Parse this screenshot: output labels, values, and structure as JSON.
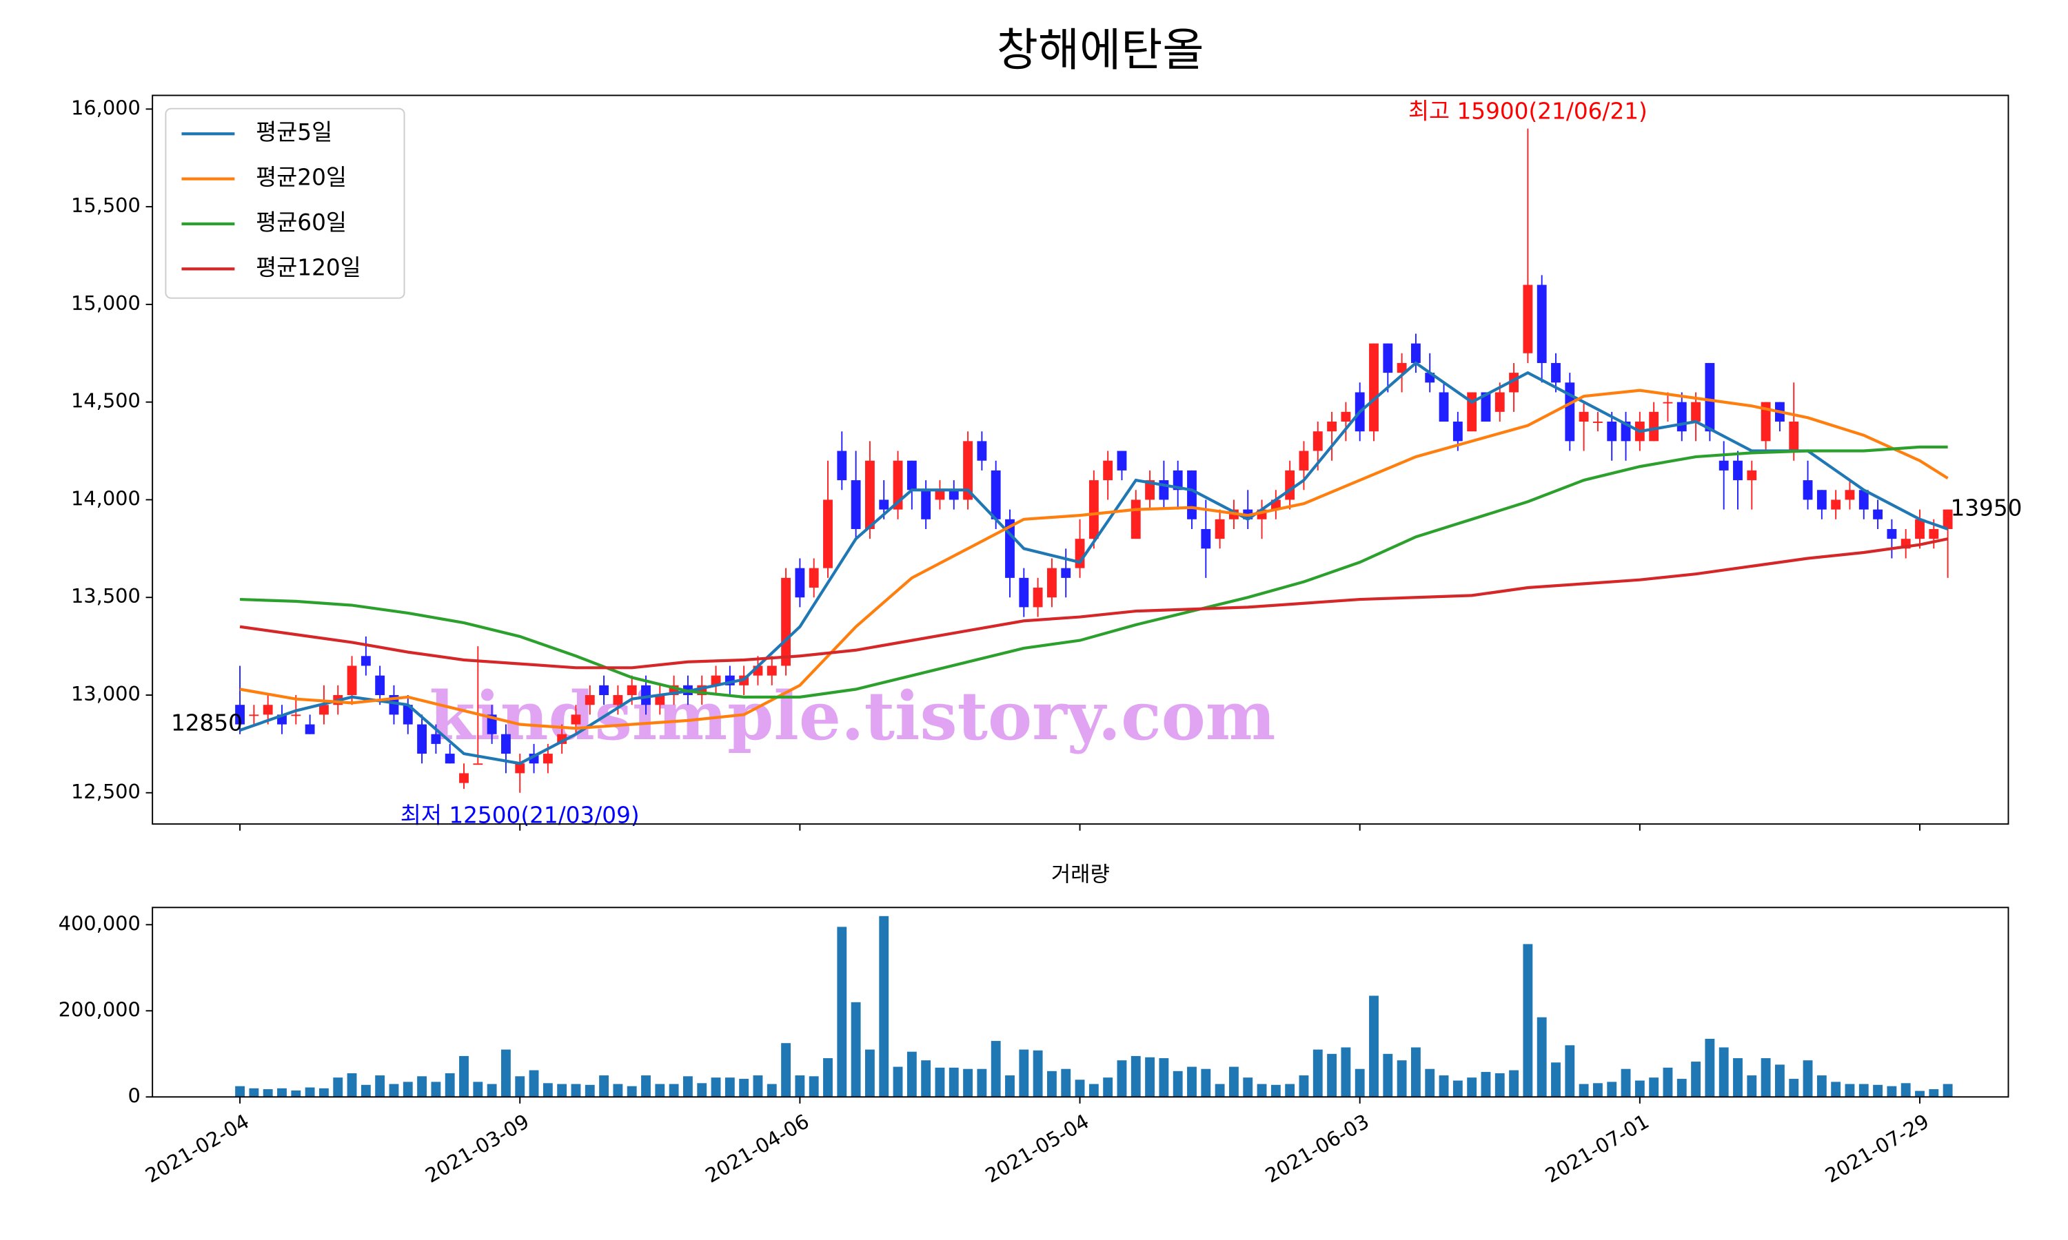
{
  "chart_data": [
    {
      "type": "candlestick",
      "title": "창해에탄올",
      "open": [
        12950,
        12900,
        12900,
        12900,
        12900,
        12850,
        12900,
        12950,
        13000,
        13200,
        13100,
        13000,
        12950,
        12850,
        12800,
        12700,
        12550,
        12650,
        12900,
        12800,
        12600,
        12700,
        12650,
        12750,
        12850,
        12950,
        13050,
        12950,
        13000,
        13050,
        12950,
        13000,
        13050,
        13000,
        13050,
        13100,
        13050,
        13100,
        13100,
        13150,
        13650,
        13550,
        13650,
        14250,
        14100,
        13850,
        14000,
        13950,
        14200,
        14050,
        14000,
        14050,
        14000,
        14300,
        14150,
        13900,
        13600,
        13450,
        13500,
        13650,
        13650,
        13800,
        14100,
        14250,
        13800,
        14000,
        14100,
        14150,
        14150,
        13850,
        13800,
        13900,
        13950,
        13900,
        13950,
        14000,
        14150,
        14250,
        14350,
        14400,
        14550,
        14350,
        14800,
        14650,
        14800,
        14650,
        14550,
        14400,
        14350,
        14550,
        14450,
        14550,
        14750,
        15100,
        14700,
        14600,
        14400,
        14400,
        14400,
        14400,
        14300,
        14300,
        14500,
        14500,
        14400,
        14700,
        14200,
        14200,
        14100,
        14300,
        14500,
        14250,
        14100,
        14050,
        13950,
        14000,
        14050,
        13950,
        13850,
        13750,
        13800,
        13800,
        13850
      ],
      "high": [
        13150,
        12950,
        13000,
        12950,
        13000,
        12900,
        13050,
        13050,
        13200,
        13300,
        13150,
        13050,
        13000,
        12900,
        12850,
        12750,
        12650,
        13250,
        12950,
        12850,
        12700,
        12750,
        12750,
        12850,
        12950,
        13050,
        13100,
        13050,
        13100,
        13100,
        13050,
        13100,
        13100,
        13100,
        13150,
        13150,
        13150,
        13200,
        13200,
        13650,
        13700,
        13700,
        14200,
        14350,
        14250,
        14300,
        14100,
        14250,
        14200,
        14100,
        14100,
        14100,
        14350,
        14350,
        14200,
        13950,
        13650,
        13600,
        13700,
        13750,
        13900,
        14150,
        14250,
        14250,
        14050,
        14150,
        14200,
        14200,
        14150,
        14000,
        13950,
        14000,
        14050,
        14000,
        14050,
        14200,
        14300,
        14400,
        14450,
        14500,
        14600,
        14800,
        14800,
        14750,
        14850,
        14750,
        14600,
        14450,
        14550,
        14550,
        14600,
        14700,
        15900,
        15150,
        14750,
        14650,
        14500,
        14450,
        14450,
        14450,
        14450,
        14500,
        14550,
        14550,
        14550,
        14700,
        14300,
        14250,
        14200,
        14500,
        14500,
        14600,
        14200,
        14050,
        14050,
        14100,
        14050,
        14000,
        13900,
        13850,
        13950,
        13900,
        13950
      ],
      "low": [
        12800,
        12850,
        12850,
        12800,
        12850,
        12800,
        12850,
        12900,
        12950,
        13100,
        12950,
        12850,
        12800,
        12650,
        12700,
        12650,
        12520,
        12650,
        12750,
        12600,
        12500,
        12600,
        12600,
        12700,
        12800,
        12900,
        12950,
        12900,
        12950,
        12900,
        12900,
        12950,
        12950,
        12950,
        13000,
        13000,
        13000,
        13050,
        13050,
        13100,
        13450,
        13500,
        13600,
        14050,
        13800,
        13800,
        13900,
        13900,
        13950,
        13850,
        13950,
        13950,
        13950,
        14150,
        13850,
        13500,
        13400,
        13400,
        13450,
        13500,
        13600,
        13750,
        14000,
        14100,
        13800,
        13950,
        13950,
        13950,
        13850,
        13600,
        13750,
        13850,
        13850,
        13800,
        13900,
        13950,
        14050,
        14150,
        14200,
        14300,
        14300,
        14300,
        14550,
        14550,
        14650,
        14550,
        14400,
        14250,
        14350,
        14400,
        14400,
        14450,
        14700,
        14600,
        14550,
        14250,
        14250,
        14350,
        14200,
        14200,
        14250,
        14300,
        14400,
        14300,
        14300,
        14300,
        13950,
        13950,
        13950,
        14250,
        14350,
        14200,
        13950,
        13900,
        13900,
        13950,
        13900,
        13850,
        13700,
        13700,
        13750,
        13750,
        13600
      ],
      "close": [
        12850,
        12900,
        12950,
        12850,
        12900,
        12800,
        12950,
        13000,
        13150,
        13150,
        13000,
        12900,
        12850,
        12700,
        12750,
        12650,
        12600,
        12650,
        12800,
        12700,
        12650,
        12650,
        12700,
        12800,
        12900,
        13000,
        13000,
        13000,
        13050,
        12950,
        13000,
        13050,
        13000,
        13050,
        13100,
        13050,
        13100,
        13150,
        13150,
        13600,
        13500,
        13650,
        14000,
        14100,
        13850,
        14200,
        13950,
        14200,
        14050,
        13900,
        14050,
        14000,
        14300,
        14200,
        13900,
        13600,
        13450,
        13550,
        13650,
        13600,
        13800,
        14100,
        14200,
        14150,
        14000,
        14100,
        14000,
        14050,
        13900,
        13750,
        13900,
        13950,
        13900,
        13950,
        14000,
        14150,
        14250,
        14350,
        14400,
        14450,
        14350,
        14800,
        14650,
        14700,
        14700,
        14600,
        14400,
        14300,
        14550,
        14400,
        14550,
        14650,
        15100,
        14700,
        14600,
        14300,
        14450,
        14400,
        14300,
        14300,
        14400,
        14450,
        14500,
        14350,
        14500,
        14350,
        14150,
        14100,
        14150,
        14500,
        14400,
        14400,
        14000,
        13950,
        14000,
        14050,
        13950,
        13900,
        13800,
        13800,
        13900,
        13850,
        13950
      ],
      "up_color": "#ff2020",
      "down_color": "#1f1fff",
      "series": [
        {
          "name": "평균5일",
          "color": "#1f77b4",
          "x": [
            0,
            4,
            8,
            12,
            16,
            20,
            24,
            28,
            32,
            36,
            40,
            44,
            48,
            52,
            56,
            60,
            64,
            68,
            72,
            76,
            80,
            84,
            88,
            92,
            96,
            100,
            104,
            108,
            112,
            116,
            120,
            122
          ],
          "values": [
            12820,
            12920,
            12990,
            12950,
            12700,
            12650,
            12800,
            12980,
            13020,
            13080,
            13350,
            13800,
            14050,
            14050,
            13750,
            13680,
            14100,
            14050,
            13900,
            14100,
            14450,
            14700,
            14500,
            14650,
            14500,
            14350,
            14400,
            14250,
            14250,
            14050,
            13900,
            13850
          ]
        },
        {
          "name": "평균20일",
          "color": "#ff7f0e",
          "x": [
            0,
            4,
            8,
            12,
            16,
            20,
            24,
            28,
            32,
            36,
            40,
            44,
            48,
            52,
            56,
            60,
            64,
            68,
            72,
            76,
            80,
            84,
            88,
            92,
            96,
            100,
            104,
            108,
            112,
            116,
            120,
            122
          ],
          "values": [
            13030,
            12980,
            12960,
            12990,
            12920,
            12850,
            12830,
            12850,
            12870,
            12900,
            13050,
            13350,
            13600,
            13750,
            13900,
            13920,
            13950,
            13960,
            13920,
            13980,
            14100,
            14220,
            14300,
            14380,
            14530,
            14560,
            14520,
            14480,
            14420,
            14330,
            14200,
            14110
          ]
        },
        {
          "name": "평균60일",
          "color": "#2ca02c",
          "x": [
            0,
            4,
            8,
            12,
            16,
            20,
            24,
            28,
            32,
            36,
            40,
            44,
            48,
            52,
            56,
            60,
            64,
            68,
            72,
            76,
            80,
            84,
            88,
            92,
            96,
            100,
            104,
            108,
            112,
            116,
            120,
            122
          ],
          "values": [
            13490,
            13480,
            13460,
            13420,
            13370,
            13300,
            13200,
            13090,
            13020,
            12990,
            12990,
            13030,
            13100,
            13170,
            13240,
            13280,
            13360,
            13430,
            13500,
            13580,
            13680,
            13810,
            13900,
            13990,
            14100,
            14170,
            14220,
            14240,
            14250,
            14250,
            14270,
            14270
          ]
        },
        {
          "name": "평균120일",
          "color": "#d62728",
          "x": [
            0,
            4,
            8,
            12,
            16,
            20,
            24,
            28,
            32,
            36,
            40,
            44,
            48,
            52,
            56,
            60,
            64,
            68,
            72,
            76,
            80,
            84,
            88,
            92,
            96,
            100,
            104,
            108,
            112,
            116,
            120,
            122
          ],
          "values": [
            13350,
            13310,
            13270,
            13220,
            13180,
            13160,
            13140,
            13140,
            13170,
            13180,
            13200,
            13230,
            13280,
            13330,
            13380,
            13400,
            13430,
            13440,
            13450,
            13470,
            13490,
            13500,
            13510,
            13550,
            13570,
            13590,
            13620,
            13660,
            13700,
            13730,
            13770,
            13800
          ]
        }
      ],
      "legend": "upper left",
      "ylim": [
        12340,
        16070
      ],
      "yticks": [
        {
          "value": 12500,
          "label": "12,500"
        },
        {
          "value": 13000,
          "label": "13,000"
        },
        {
          "value": 13500,
          "label": "13,500"
        },
        {
          "value": 14000,
          "label": "14,000"
        },
        {
          "value": 14500,
          "label": "14,500"
        },
        {
          "value": 15000,
          "label": "15,000"
        },
        {
          "value": 15500,
          "label": "15,500"
        },
        {
          "value": 16000,
          "label": "16,000"
        }
      ],
      "high_label": "최고 15900(21/06/21)",
      "high_color": "#ff0000",
      "low_label": "최저 12500(21/03/09)",
      "low_color": "#0000ff",
      "first_label": "12850",
      "last_label": "13950",
      "watermark": "kindsimple.tistory.com"
    },
    {
      "type": "bar",
      "title": "거래량",
      "color": "#1f77b4",
      "categories": [
        "2021-02-04",
        null,
        null,
        null,
        null,
        null,
        null,
        null,
        null,
        null,
        null,
        null,
        null,
        null,
        null,
        null,
        null,
        null,
        null,
        null,
        "2021-03-09",
        null,
        null,
        null,
        null,
        null,
        null,
        null,
        null,
        null,
        null,
        null,
        null,
        null,
        null,
        null,
        null,
        null,
        null,
        null,
        "2021-04-06",
        null,
        null,
        null,
        null,
        null,
        null,
        null,
        null,
        null,
        null,
        null,
        null,
        null,
        null,
        null,
        null,
        null,
        null,
        null,
        "2021-05-04",
        null,
        null,
        null,
        null,
        null,
        null,
        null,
        null,
        null,
        null,
        null,
        null,
        null,
        null,
        null,
        null,
        null,
        null,
        null,
        "2021-06-03",
        null,
        null,
        null,
        null,
        null,
        null,
        null,
        null,
        null,
        null,
        null,
        null,
        null,
        null,
        null,
        null,
        null,
        null,
        null,
        "2021-07-01",
        null,
        null,
        null,
        null,
        null,
        null,
        null,
        null,
        null,
        null,
        null,
        null,
        null,
        null,
        null,
        null,
        null,
        null,
        null,
        "2021-07-29",
        null,
        null
      ],
      "values": [
        25000,
        20000,
        18000,
        20000,
        15000,
        22000,
        20000,
        45000,
        55000,
        28000,
        50000,
        30000,
        35000,
        48000,
        35000,
        55000,
        95000,
        35000,
        30000,
        110000,
        48000,
        62000,
        32000,
        30000,
        30000,
        28000,
        50000,
        30000,
        25000,
        50000,
        30000,
        30000,
        48000,
        32000,
        45000,
        45000,
        42000,
        50000,
        30000,
        125000,
        50000,
        48000,
        90000,
        395000,
        220000,
        110000,
        420000,
        70000,
        105000,
        85000,
        68000,
        68000,
        65000,
        65000,
        130000,
        50000,
        110000,
        108000,
        60000,
        65000,
        40000,
        30000,
        45000,
        85000,
        95000,
        92000,
        90000,
        60000,
        70000,
        65000,
        30000,
        70000,
        45000,
        30000,
        28000,
        30000,
        50000,
        110000,
        100000,
        115000,
        65000,
        235000,
        100000,
        85000,
        115000,
        65000,
        50000,
        38000,
        45000,
        58000,
        55000,
        62000,
        355000,
        185000,
        80000,
        120000,
        30000,
        32000,
        35000,
        65000,
        38000,
        45000,
        68000,
        42000,
        82000,
        135000,
        115000,
        90000,
        50000,
        90000,
        75000,
        42000,
        85000,
        50000,
        35000,
        30000,
        30000,
        28000,
        25000,
        32000,
        14000,
        18000,
        30000
      ],
      "ylim": [
        0,
        440000
      ],
      "yticks": [
        0,
        {
          "value": 200000,
          "label": "200,000"
        },
        {
          "value": 400000,
          "label": "400,000"
        }
      ]
    }
  ]
}
